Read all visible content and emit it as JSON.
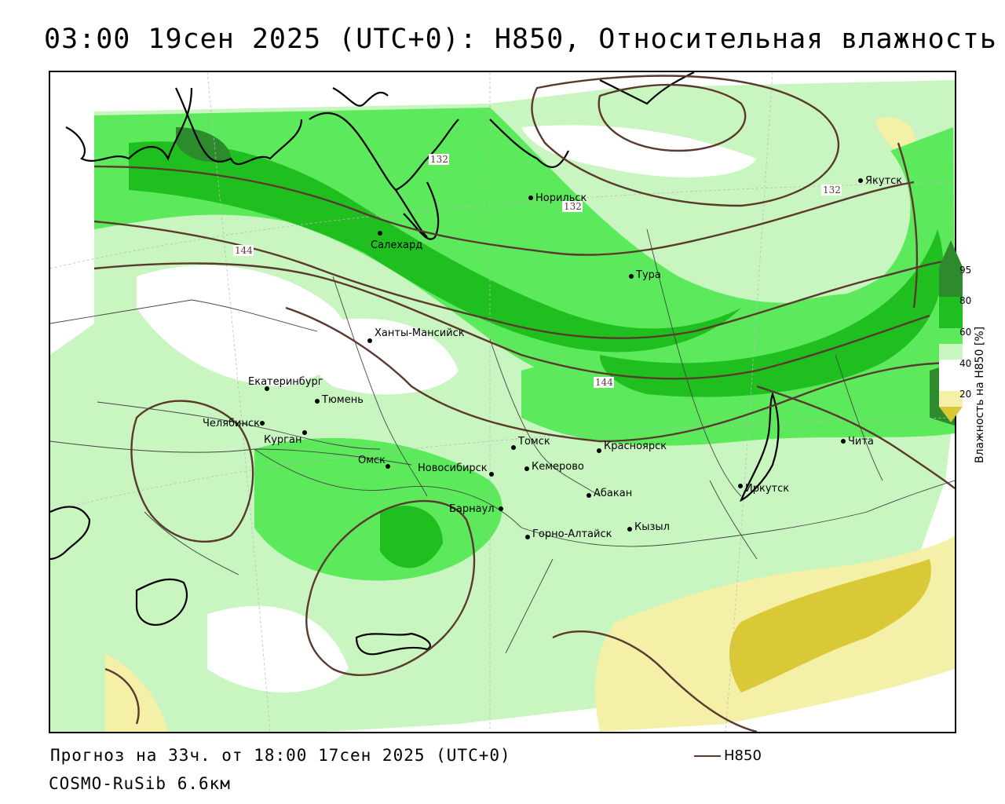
{
  "title": "03:00 19сен 2025 (UTC+0): H850, Относительная влажность",
  "forecast_line": "Прогноз на 33ч. от 18:00 17сен 2025 (UTC+0)",
  "model_line": "COSMO-RuSib 6.6км",
  "series_label": "H850",
  "legend": {
    "title": "Влажность на H850 [%]",
    "ticks": [
      "95",
      "80",
      "60",
      "40",
      "20"
    ],
    "colors": {
      "c95": "#2d8a2d",
      "c80": "#1fbf1f",
      "c60": "#5cea5c",
      "c50": "#c8f5c0",
      "c40": "#ffffff",
      "c20": "#f5f0a8",
      "c0": "#d9c936"
    }
  },
  "contour_labels": [
    "132",
    "132",
    "132",
    "144",
    "144"
  ],
  "cities": [
    {
      "name": "Норильск"
    },
    {
      "name": "Якутск"
    },
    {
      "name": "Салехард"
    },
    {
      "name": "Тура"
    },
    {
      "name": "Ханты-Мансийск"
    },
    {
      "name": "Екатеринбург"
    },
    {
      "name": "Тюмень"
    },
    {
      "name": "Челябинск"
    },
    {
      "name": "Курган"
    },
    {
      "name": "Омск"
    },
    {
      "name": "Новосибирск"
    },
    {
      "name": "Томск"
    },
    {
      "name": "Кемерово"
    },
    {
      "name": "Красноярск"
    },
    {
      "name": "Абакан"
    },
    {
      "name": "Барнаул"
    },
    {
      "name": "Горно-Алтайск"
    },
    {
      "name": "Кызыл"
    },
    {
      "name": "Иркутск"
    },
    {
      "name": "Чита"
    }
  ]
}
